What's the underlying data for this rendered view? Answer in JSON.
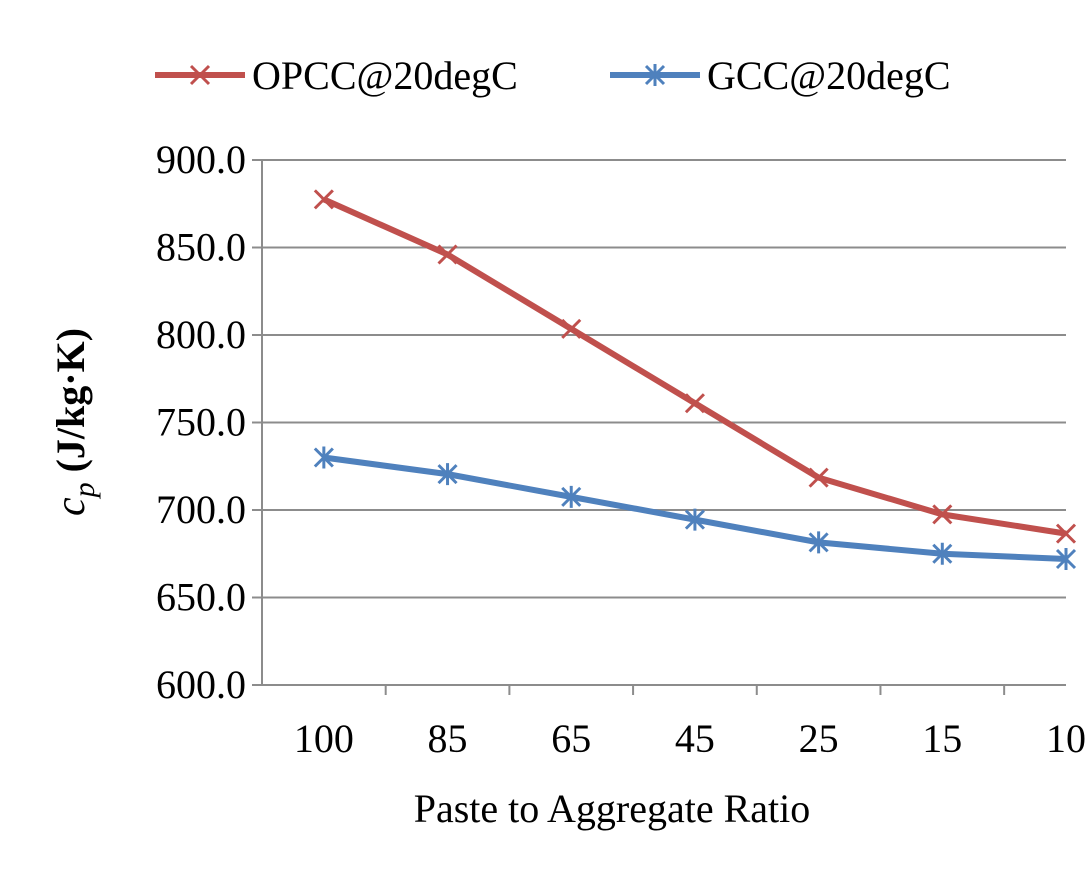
{
  "chart_data": {
    "type": "line",
    "categories": [
      "100",
      "85",
      "65",
      "45",
      "25",
      "15",
      "10"
    ],
    "series": [
      {
        "name": "OPCC@20degC",
        "color": "#c0504d",
        "marker": "asterisk-x",
        "values": [
          877.5,
          846.0,
          803.5,
          761.0,
          718.5,
          697.5,
          686.5
        ]
      },
      {
        "name": "GCC@20degC",
        "color": "#4f81bd",
        "marker": "asterisk",
        "values": [
          730.0,
          720.5,
          707.5,
          694.5,
          681.5,
          675.0,
          672.0
        ]
      }
    ],
    "ylim": [
      600,
      900
    ],
    "yticks": [
      600,
      650,
      700,
      750,
      800,
      850,
      900
    ],
    "ytick_labels": [
      "600.0",
      "650.0",
      "700.0",
      "750.0",
      "800.0",
      "850.0",
      "900.0"
    ],
    "xlabel": "Paste to Aggregate Ratio",
    "ylabel_symbol": "c",
    "ylabel_subscript": "p",
    "ylabel_units": "(J/kg·K)",
    "grid": "horizontal",
    "legend_position": "top"
  }
}
